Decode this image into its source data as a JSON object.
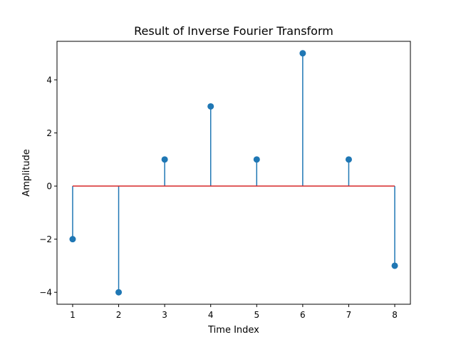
{
  "chart_data": {
    "type": "stem",
    "title": "Result of Inverse Fourier Transform",
    "xlabel": "Time Index",
    "ylabel": "Amplitude",
    "x": [
      1,
      2,
      3,
      4,
      5,
      6,
      7,
      8
    ],
    "values": [
      -2,
      -4,
      1,
      3,
      1,
      5,
      1,
      -3
    ],
    "xlim": [
      0.66,
      8.34
    ],
    "ylim": [
      -4.45,
      5.45
    ],
    "xticks": [
      1,
      2,
      3,
      4,
      5,
      6,
      7,
      8
    ],
    "yticks": [
      -4,
      -2,
      0,
      2,
      4
    ],
    "xtick_labels": [
      "1",
      "2",
      "3",
      "4",
      "5",
      "6",
      "7",
      "8"
    ],
    "ytick_labels": [
      "−4",
      "−2",
      "0",
      "2",
      "4"
    ],
    "baseline": 0,
    "grid": false,
    "colors": {
      "stem": "#1f77b4",
      "marker": "#1f77b4",
      "baseline": "#d62728"
    }
  }
}
